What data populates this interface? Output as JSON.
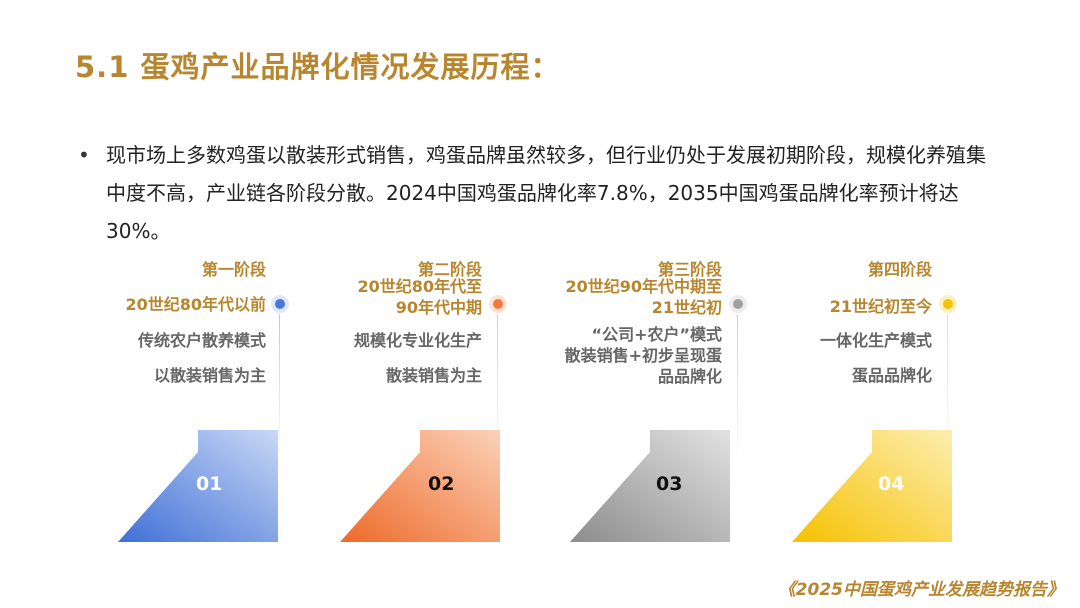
{
  "title": "5.1 蛋鸡产业品牌化情况发展历程：",
  "bullet": "现市场上多数鸡蛋以散装形式销售，鸡蛋品牌虽然较多，但行业仍处于发展初期阶段，规模化养殖集中度不高，产业链各阶段分散。2024中国鸡蛋品牌化率7.8%，2035中国鸡蛋品牌化率预计将达30%。",
  "stages": [
    {
      "label": "第一阶段",
      "period": [
        "20世纪80年代以前"
      ],
      "desc": [
        "传统农户散养模式",
        "以散装销售为主"
      ],
      "number": "01",
      "color": "#4a78d8"
    },
    {
      "label": "第二阶段",
      "period": [
        "20世纪80年代至",
        "90年代中期"
      ],
      "desc": [
        "规模化专业化生产",
        "散装销售为主"
      ],
      "number": "02",
      "color": "#f07a3c"
    },
    {
      "label": "第三阶段",
      "period": [
        "20世纪90年代中期至",
        "21世纪初"
      ],
      "desc": [
        "“公司+农户”模式",
        "散装销售+初步呈现蛋",
        "品品牌化"
      ],
      "number": "03",
      "color": "#9a9a9a"
    },
    {
      "label": "第四阶段",
      "period": [
        "21世纪初至今"
      ],
      "desc": [
        "一体化生产模式",
        "蛋品品牌化"
      ],
      "number": "04",
      "color": "#f6c300"
    }
  ],
  "source": "《2025中国蛋鸡产业发展趋势报告》"
}
